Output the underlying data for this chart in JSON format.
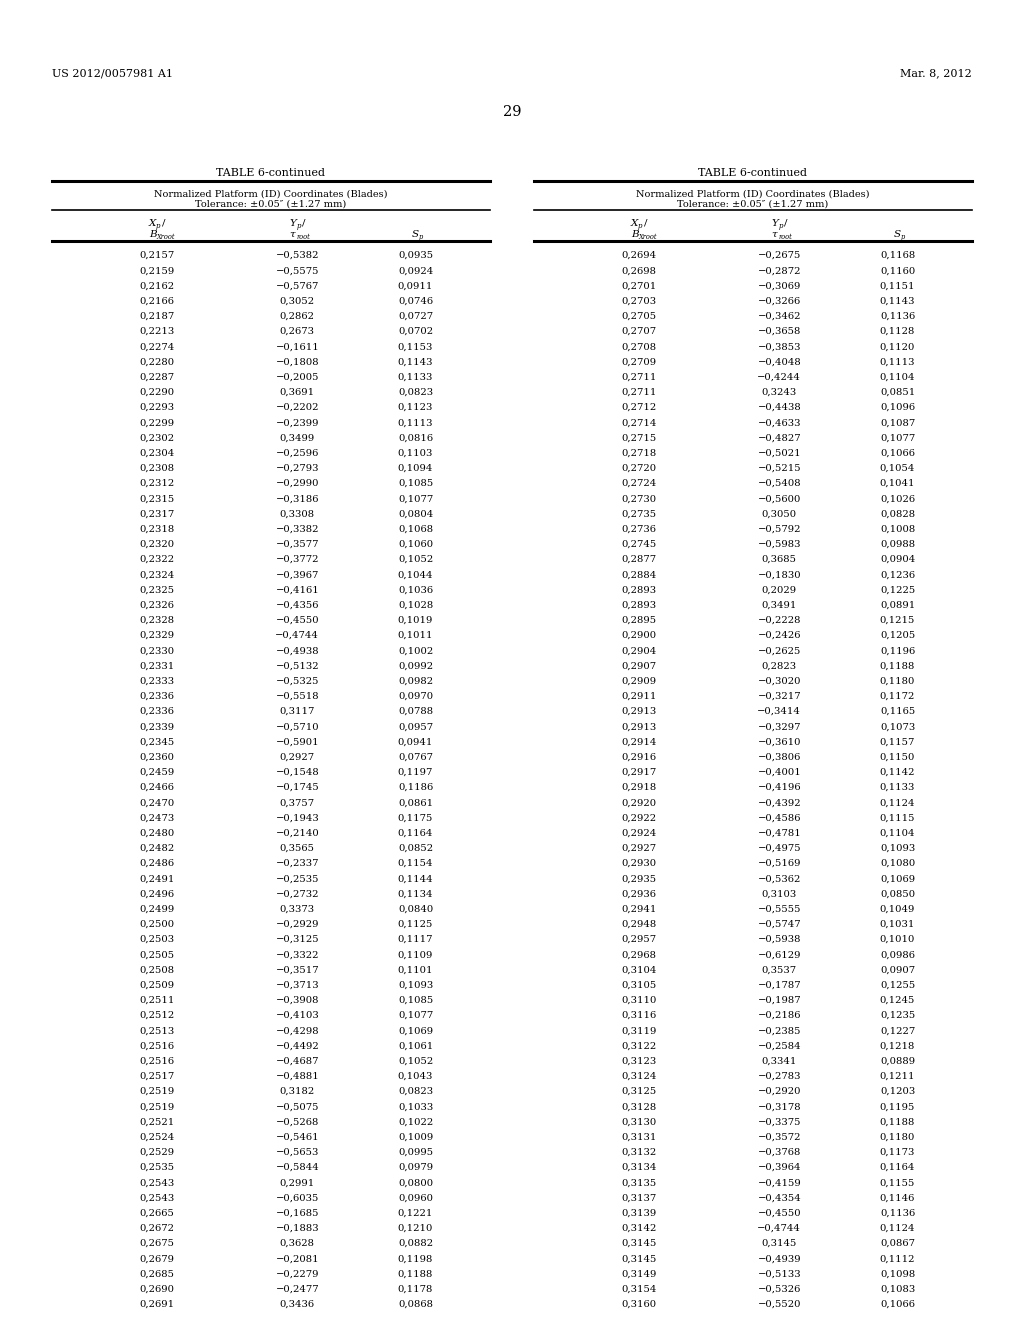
{
  "header_left": "US 2012/0057981 A1",
  "header_right": "Mar. 8, 2012",
  "page_number": "29",
  "table_title": "TABLE 6-continued",
  "table_subtitle1": "Normalized Platform (ID) Coordinates (Blades)",
  "table_subtitle2": "Tolerance: ±0.05″ (±1.27 mm)",
  "left_data": [
    [
      "0,2157",
      "−0,5382",
      "0,0935"
    ],
    [
      "0,2159",
      "−0,5575",
      "0,0924"
    ],
    [
      "0,2162",
      "−0,5767",
      "0,0911"
    ],
    [
      "0,2166",
      "0,3052",
      "0,0746"
    ],
    [
      "0,2187",
      "0,2862",
      "0,0727"
    ],
    [
      "0,2213",
      "0,2673",
      "0,0702"
    ],
    [
      "0,2274",
      "−0,1611",
      "0,1153"
    ],
    [
      "0,2280",
      "−0,1808",
      "0,1143"
    ],
    [
      "0,2287",
      "−0,2005",
      "0,1133"
    ],
    [
      "0,2290",
      "0,3691",
      "0,0823"
    ],
    [
      "0,2293",
      "−0,2202",
      "0,1123"
    ],
    [
      "0,2299",
      "−0,2399",
      "0,1113"
    ],
    [
      "0,2302",
      "0,3499",
      "0,0816"
    ],
    [
      "0,2304",
      "−0,2596",
      "0,1103"
    ],
    [
      "0,2308",
      "−0,2793",
      "0,1094"
    ],
    [
      "0,2312",
      "−0,2990",
      "0,1085"
    ],
    [
      "0,2315",
      "−0,3186",
      "0,1077"
    ],
    [
      "0,2317",
      "0,3308",
      "0,0804"
    ],
    [
      "0,2318",
      "−0,3382",
      "0,1068"
    ],
    [
      "0,2320",
      "−0,3577",
      "0,1060"
    ],
    [
      "0,2322",
      "−0,3772",
      "0,1052"
    ],
    [
      "0,2324",
      "−0,3967",
      "0,1044"
    ],
    [
      "0,2325",
      "−0,4161",
      "0,1036"
    ],
    [
      "0,2326",
      "−0,4356",
      "0,1028"
    ],
    [
      "0,2328",
      "−0,4550",
      "0,1019"
    ],
    [
      "0,2329",
      "−0,4744",
      "0,1011"
    ],
    [
      "0,2330",
      "−0,4938",
      "0,1002"
    ],
    [
      "0,2331",
      "−0,5132",
      "0,0992"
    ],
    [
      "0,2333",
      "−0,5325",
      "0,0982"
    ],
    [
      "0,2336",
      "−0,5518",
      "0,0970"
    ],
    [
      "0,2336",
      "0,3117",
      "0,0788"
    ],
    [
      "0,2339",
      "−0,5710",
      "0,0957"
    ],
    [
      "0,2345",
      "−0,5901",
      "0,0941"
    ],
    [
      "0,2360",
      "0,2927",
      "0,0767"
    ],
    [
      "0,2459",
      "−0,1548",
      "0,1197"
    ],
    [
      "0,2466",
      "−0,1745",
      "0,1186"
    ],
    [
      "0,2470",
      "0,3757",
      "0,0861"
    ],
    [
      "0,2473",
      "−0,1943",
      "0,1175"
    ],
    [
      "0,2480",
      "−0,2140",
      "0,1164"
    ],
    [
      "0,2482",
      "0,3565",
      "0,0852"
    ],
    [
      "0,2486",
      "−0,2337",
      "0,1154"
    ],
    [
      "0,2491",
      "−0,2535",
      "0,1144"
    ],
    [
      "0,2496",
      "−0,2732",
      "0,1134"
    ],
    [
      "0,2499",
      "0,3373",
      "0,0840"
    ],
    [
      "0,2500",
      "−0,2929",
      "0,1125"
    ],
    [
      "0,2503",
      "−0,3125",
      "0,1117"
    ],
    [
      "0,2505",
      "−0,3322",
      "0,1109"
    ],
    [
      "0,2508",
      "−0,3517",
      "0,1101"
    ],
    [
      "0,2509",
      "−0,3713",
      "0,1093"
    ],
    [
      "0,2511",
      "−0,3908",
      "0,1085"
    ],
    [
      "0,2512",
      "−0,4103",
      "0,1077"
    ],
    [
      "0,2513",
      "−0,4298",
      "0,1069"
    ],
    [
      "0,2516",
      "−0,4492",
      "0,1061"
    ],
    [
      "0,2516",
      "−0,4687",
      "0,1052"
    ],
    [
      "0,2517",
      "−0,4881",
      "0,1043"
    ],
    [
      "0,2519",
      "0,3182",
      "0,0823"
    ],
    [
      "0,2519",
      "−0,5075",
      "0,1033"
    ],
    [
      "0,2521",
      "−0,5268",
      "0,1022"
    ],
    [
      "0,2524",
      "−0,5461",
      "0,1009"
    ],
    [
      "0,2529",
      "−0,5653",
      "0,0995"
    ],
    [
      "0,2535",
      "−0,5844",
      "0,0979"
    ],
    [
      "0,2543",
      "0,2991",
      "0,0800"
    ],
    [
      "0,2543",
      "−0,6035",
      "0,0960"
    ],
    [
      "0,2665",
      "−0,1685",
      "0,1221"
    ],
    [
      "0,2672",
      "−0,1883",
      "0,1210"
    ],
    [
      "0,2675",
      "0,3628",
      "0,0882"
    ],
    [
      "0,2679",
      "−0,2081",
      "0,1198"
    ],
    [
      "0,2685",
      "−0,2279",
      "0,1188"
    ],
    [
      "0,2690",
      "−0,2477",
      "0,1178"
    ],
    [
      "0,2691",
      "0,3436",
      "0,0868"
    ]
  ],
  "right_data": [
    [
      "0,2694",
      "−0,2675",
      "0,1168"
    ],
    [
      "0,2698",
      "−0,2872",
      "0,1160"
    ],
    [
      "0,2701",
      "−0,3069",
      "0,1151"
    ],
    [
      "0,2703",
      "−0,3266",
      "0,1143"
    ],
    [
      "0,2705",
      "−0,3462",
      "0,1136"
    ],
    [
      "0,2707",
      "−0,3658",
      "0,1128"
    ],
    [
      "0,2708",
      "−0,3853",
      "0,1120"
    ],
    [
      "0,2709",
      "−0,4048",
      "0,1113"
    ],
    [
      "0,2711",
      "−0,4244",
      "0,1104"
    ],
    [
      "0,2711",
      "0,3243",
      "0,0851"
    ],
    [
      "0,2712",
      "−0,4438",
      "0,1096"
    ],
    [
      "0,2714",
      "−0,4633",
      "0,1087"
    ],
    [
      "0,2715",
      "−0,4827",
      "0,1077"
    ],
    [
      "0,2718",
      "−0,5021",
      "0,1066"
    ],
    [
      "0,2720",
      "−0,5215",
      "0,1054"
    ],
    [
      "0,2724",
      "−0,5408",
      "0,1041"
    ],
    [
      "0,2730",
      "−0,5600",
      "0,1026"
    ],
    [
      "0,2735",
      "0,3050",
      "0,0828"
    ],
    [
      "0,2736",
      "−0,5792",
      "0,1008"
    ],
    [
      "0,2745",
      "−0,5983",
      "0,0988"
    ],
    [
      "0,2877",
      "0,3685",
      "0,0904"
    ],
    [
      "0,2884",
      "−0,1830",
      "0,1236"
    ],
    [
      "0,2893",
      "0,2029",
      "0,1225"
    ],
    [
      "0,2893",
      "0,3491",
      "0,0891"
    ],
    [
      "0,2895",
      "−0,2228",
      "0,1215"
    ],
    [
      "0,2900",
      "−0,2426",
      "0,1205"
    ],
    [
      "0,2904",
      "−0,2625",
      "0,1196"
    ],
    [
      "0,2907",
      "0,2823",
      "0,1188"
    ],
    [
      "0,2909",
      "−0,3020",
      "0,1180"
    ],
    [
      "0,2911",
      "−0,3217",
      "0,1172"
    ],
    [
      "0,2913",
      "−0,3414",
      "0,1165"
    ],
    [
      "0,2913",
      "−0,3297",
      "0,1073"
    ],
    [
      "0,2914",
      "−0,3610",
      "0,1157"
    ],
    [
      "0,2916",
      "−0,3806",
      "0,1150"
    ],
    [
      "0,2917",
      "−0,4001",
      "0,1142"
    ],
    [
      "0,2918",
      "−0,4196",
      "0,1133"
    ],
    [
      "0,2920",
      "−0,4392",
      "0,1124"
    ],
    [
      "0,2922",
      "−0,4586",
      "0,1115"
    ],
    [
      "0,2924",
      "−0,4781",
      "0,1104"
    ],
    [
      "0,2927",
      "−0,4975",
      "0,1093"
    ],
    [
      "0,2930",
      "−0,5169",
      "0,1080"
    ],
    [
      "0,2935",
      "−0,5362",
      "0,1069"
    ],
    [
      "0,2936",
      "0,3103",
      "0,0850"
    ],
    [
      "0,2941",
      "−0,5555",
      "0,1049"
    ],
    [
      "0,2948",
      "−0,5747",
      "0,1031"
    ],
    [
      "0,2957",
      "−0,5938",
      "0,1010"
    ],
    [
      "0,2968",
      "−0,6129",
      "0,0986"
    ],
    [
      "0,3104",
      "0,3537",
      "0,0907"
    ],
    [
      "0,3105",
      "−0,1787",
      "0,1255"
    ],
    [
      "0,3110",
      "−0,1987",
      "0,1245"
    ],
    [
      "0,3116",
      "−0,2186",
      "0,1235"
    ],
    [
      "0,3119",
      "−0,2385",
      "0,1227"
    ],
    [
      "0,3122",
      "−0,2584",
      "0,1218"
    ],
    [
      "0,3123",
      "0,3341",
      "0,0889"
    ],
    [
      "0,3124",
      "−0,2783",
      "0,1211"
    ],
    [
      "0,3125",
      "−0,2920",
      "0,1203"
    ],
    [
      "0,3128",
      "−0,3178",
      "0,1195"
    ],
    [
      "0,3130",
      "−0,3375",
      "0,1188"
    ],
    [
      "0,3131",
      "−0,3572",
      "0,1180"
    ],
    [
      "0,3132",
      "−0,3768",
      "0,1173"
    ],
    [
      "0,3134",
      "−0,3964",
      "0,1164"
    ],
    [
      "0,3135",
      "−0,4159",
      "0,1155"
    ],
    [
      "0,3137",
      "−0,4354",
      "0,1146"
    ],
    [
      "0,3139",
      "−0,4550",
      "0,1136"
    ],
    [
      "0,3142",
      "−0,4744",
      "0,1124"
    ],
    [
      "0,3145",
      "0,3145",
      "0,0867"
    ],
    [
      "0,3145",
      "−0,4939",
      "0,1112"
    ],
    [
      "0,3149",
      "−0,5133",
      "0,1098"
    ],
    [
      "0,3154",
      "−0,5326",
      "0,1083"
    ],
    [
      "0,3160",
      "−0,5520",
      "0,1066"
    ]
  ],
  "bg_color": "#ffffff",
  "text_color": "#000000"
}
